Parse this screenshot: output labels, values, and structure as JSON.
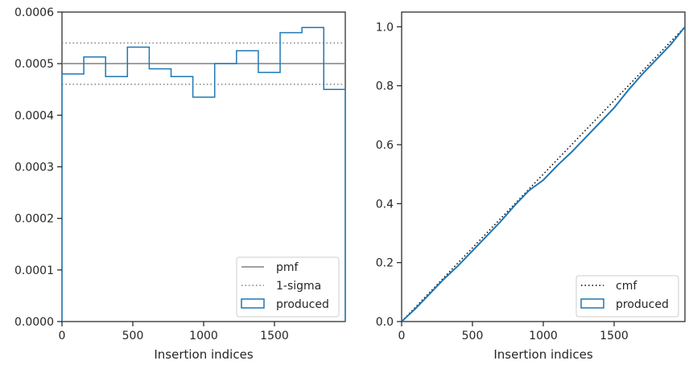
{
  "chart_data": [
    {
      "type": "step",
      "xlabel": "Insertion indices",
      "ylabel": "",
      "xlim": [
        0,
        2000
      ],
      "ylim": [
        0,
        0.0006
      ],
      "xticks": [
        0,
        500,
        1000,
        1500
      ],
      "xtick_labels": [
        "0",
        "500",
        "1000",
        "1500"
      ],
      "yticks": [
        0,
        0.0001,
        0.0002,
        0.0003,
        0.0004,
        0.0005,
        0.0006
      ],
      "ytick_labels": [
        "0.0000",
        "0.0001",
        "0.0002",
        "0.0003",
        "0.0004",
        "0.0005",
        "0.0006"
      ],
      "reference_lines": {
        "pmf": 0.0005,
        "sigma_upper": 0.00054,
        "sigma_lower": 0.00046
      },
      "bin_edges": [
        0,
        154,
        308,
        462,
        616,
        770,
        924,
        1078,
        1232,
        1386,
        1540,
        1694,
        1848,
        2000
      ],
      "values": [
        0.00048,
        0.000513,
        0.000475,
        0.000532,
        0.00049,
        0.000475,
        0.000435,
        0.0005,
        0.000525,
        0.000483,
        0.00056,
        0.00057,
        0.00045
      ],
      "legend": {
        "position": "lower-right",
        "entries": [
          {
            "label": "pmf",
            "style": "solid",
            "color": "#808080"
          },
          {
            "label": "1-sigma",
            "style": "dotted",
            "color": "#808080"
          },
          {
            "label": "produced",
            "style": "box",
            "color": "#1f77b4"
          }
        ]
      },
      "colors": {
        "produced": "#1f77b4",
        "reference": "#808080"
      }
    },
    {
      "type": "line",
      "xlabel": "Insertion indices",
      "ylabel": "",
      "xlim": [
        0,
        2000
      ],
      "ylim": [
        0,
        1.05
      ],
      "xticks": [
        0,
        500,
        1000,
        1500
      ],
      "xtick_labels": [
        "0",
        "500",
        "1000",
        "1500"
      ],
      "yticks": [
        0,
        0.2,
        0.4,
        0.6,
        0.8,
        1.0
      ],
      "ytick_labels": [
        "0.0",
        "0.2",
        "0.4",
        "0.6",
        "0.8",
        "1.0"
      ],
      "series": [
        {
          "name": "cmf",
          "style": "dotted",
          "color": "#000000",
          "x": [
            0,
            2000
          ],
          "y": [
            0,
            1.0
          ]
        },
        {
          "name": "produced",
          "style": "solid",
          "color": "#1f77b4",
          "x": [
            0,
            100,
            200,
            300,
            400,
            500,
            600,
            700,
            800,
            900,
            1000,
            1100,
            1200,
            1300,
            1400,
            1500,
            1600,
            1700,
            1800,
            1900,
            2000
          ],
          "y": [
            0,
            0.045,
            0.095,
            0.145,
            0.19,
            0.24,
            0.29,
            0.34,
            0.395,
            0.445,
            0.48,
            0.53,
            0.575,
            0.625,
            0.675,
            0.725,
            0.785,
            0.84,
            0.89,
            0.94,
            1.0
          ]
        }
      ],
      "legend": {
        "position": "lower-right",
        "entries": [
          {
            "label": "cmf",
            "style": "dotted",
            "color": "#000000"
          },
          {
            "label": "produced",
            "style": "box",
            "color": "#1f77b4"
          }
        ]
      }
    }
  ]
}
